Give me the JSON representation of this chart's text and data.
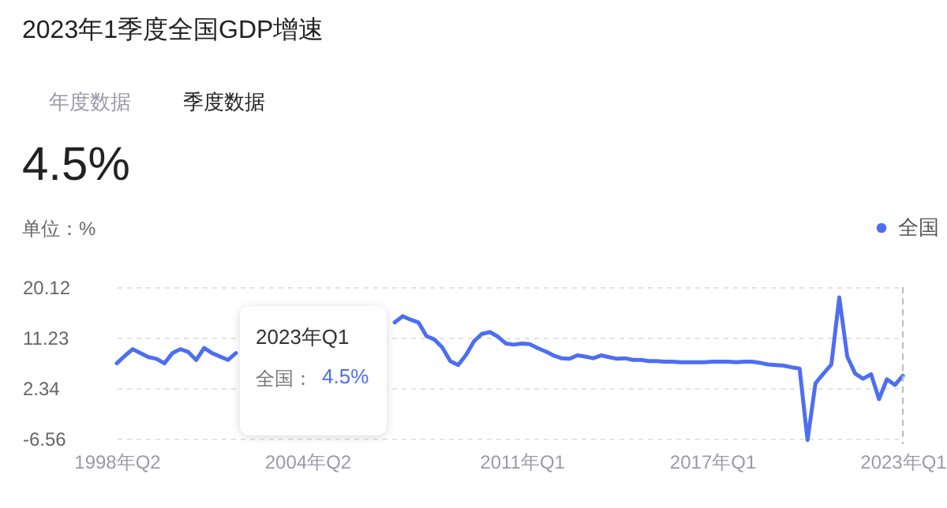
{
  "chart_data": {
    "type": "line",
    "title": "2023年1季度全国GDP增速",
    "ylabel": "单位：%",
    "annotations": [
      "年度数据",
      "季度数据",
      "4.5%",
      "2023年Q1",
      "全国：",
      "4.5%"
    ],
    "categories": [
      "1998年Q2",
      null,
      null,
      null,
      null,
      null,
      null,
      null,
      null,
      null,
      null,
      null,
      null,
      null,
      null,
      null,
      null,
      null,
      null,
      null,
      null,
      null,
      null,
      null,
      "2004年Q2",
      null,
      null,
      null,
      null,
      null,
      null,
      null,
      null,
      null,
      null,
      null,
      null,
      null,
      null,
      null,
      null,
      null,
      null,
      null,
      null,
      null,
      null,
      null,
      null,
      null,
      null,
      "2011年Q1",
      null,
      null,
      null,
      null,
      null,
      null,
      null,
      null,
      null,
      null,
      null,
      null,
      null,
      null,
      null,
      null,
      null,
      null,
      null,
      null,
      null,
      null,
      null,
      "2017年Q1",
      null,
      null,
      null,
      null,
      null,
      null,
      null,
      null,
      null,
      null,
      null,
      null,
      null,
      null,
      null,
      null,
      null,
      null,
      null,
      null,
      null,
      null,
      null,
      "2023年Q1"
    ],
    "series": [
      {
        "name": "全国",
        "color": "#4e6ef2",
        "values": [
          6.7,
          8.0,
          9.2,
          8.5,
          7.8,
          7.5,
          6.7,
          8.5,
          9.2,
          8.7,
          7.3,
          9.4,
          8.5,
          7.9,
          7.3,
          8.5,
          null,
          null,
          null,
          null,
          null,
          null,
          null,
          null,
          null,
          null,
          null,
          null,
          null,
          null,
          null,
          null,
          null,
          null,
          null,
          13.9,
          15.0,
          14.4,
          13.9,
          11.5,
          10.9,
          9.5,
          7.1,
          6.4,
          8.2,
          10.6,
          11.9,
          12.2,
          11.4,
          10.2,
          10.0,
          10.2,
          10.1,
          9.4,
          8.8,
          8.1,
          7.6,
          7.5,
          8.1,
          7.9,
          7.6,
          8.1,
          7.8,
          7.5,
          7.6,
          7.3,
          7.3,
          7.1,
          7.1,
          7.0,
          7.0,
          6.9,
          6.9,
          6.9,
          6.9,
          7.0,
          7.0,
          7.0,
          6.9,
          7.0,
          7.0,
          6.8,
          6.5,
          6.4,
          6.3,
          6.0,
          5.8,
          -6.8,
          3.2,
          4.9,
          6.5,
          18.3,
          7.9,
          4.9,
          4.0,
          4.8,
          0.4,
          3.9,
          2.9,
          4.5
        ]
      }
    ],
    "ylim": [
      -7.5,
      20.12
    ],
    "yticks": [
      -6.56,
      2.34,
      11.23,
      20.12
    ],
    "grid": "y",
    "legend": "top right",
    "ref_lines": [
      {
        "axis": "x",
        "value": "2023年Q1",
        "color": "#bbbbbb",
        "line_style": "dashed"
      }
    ]
  }
}
